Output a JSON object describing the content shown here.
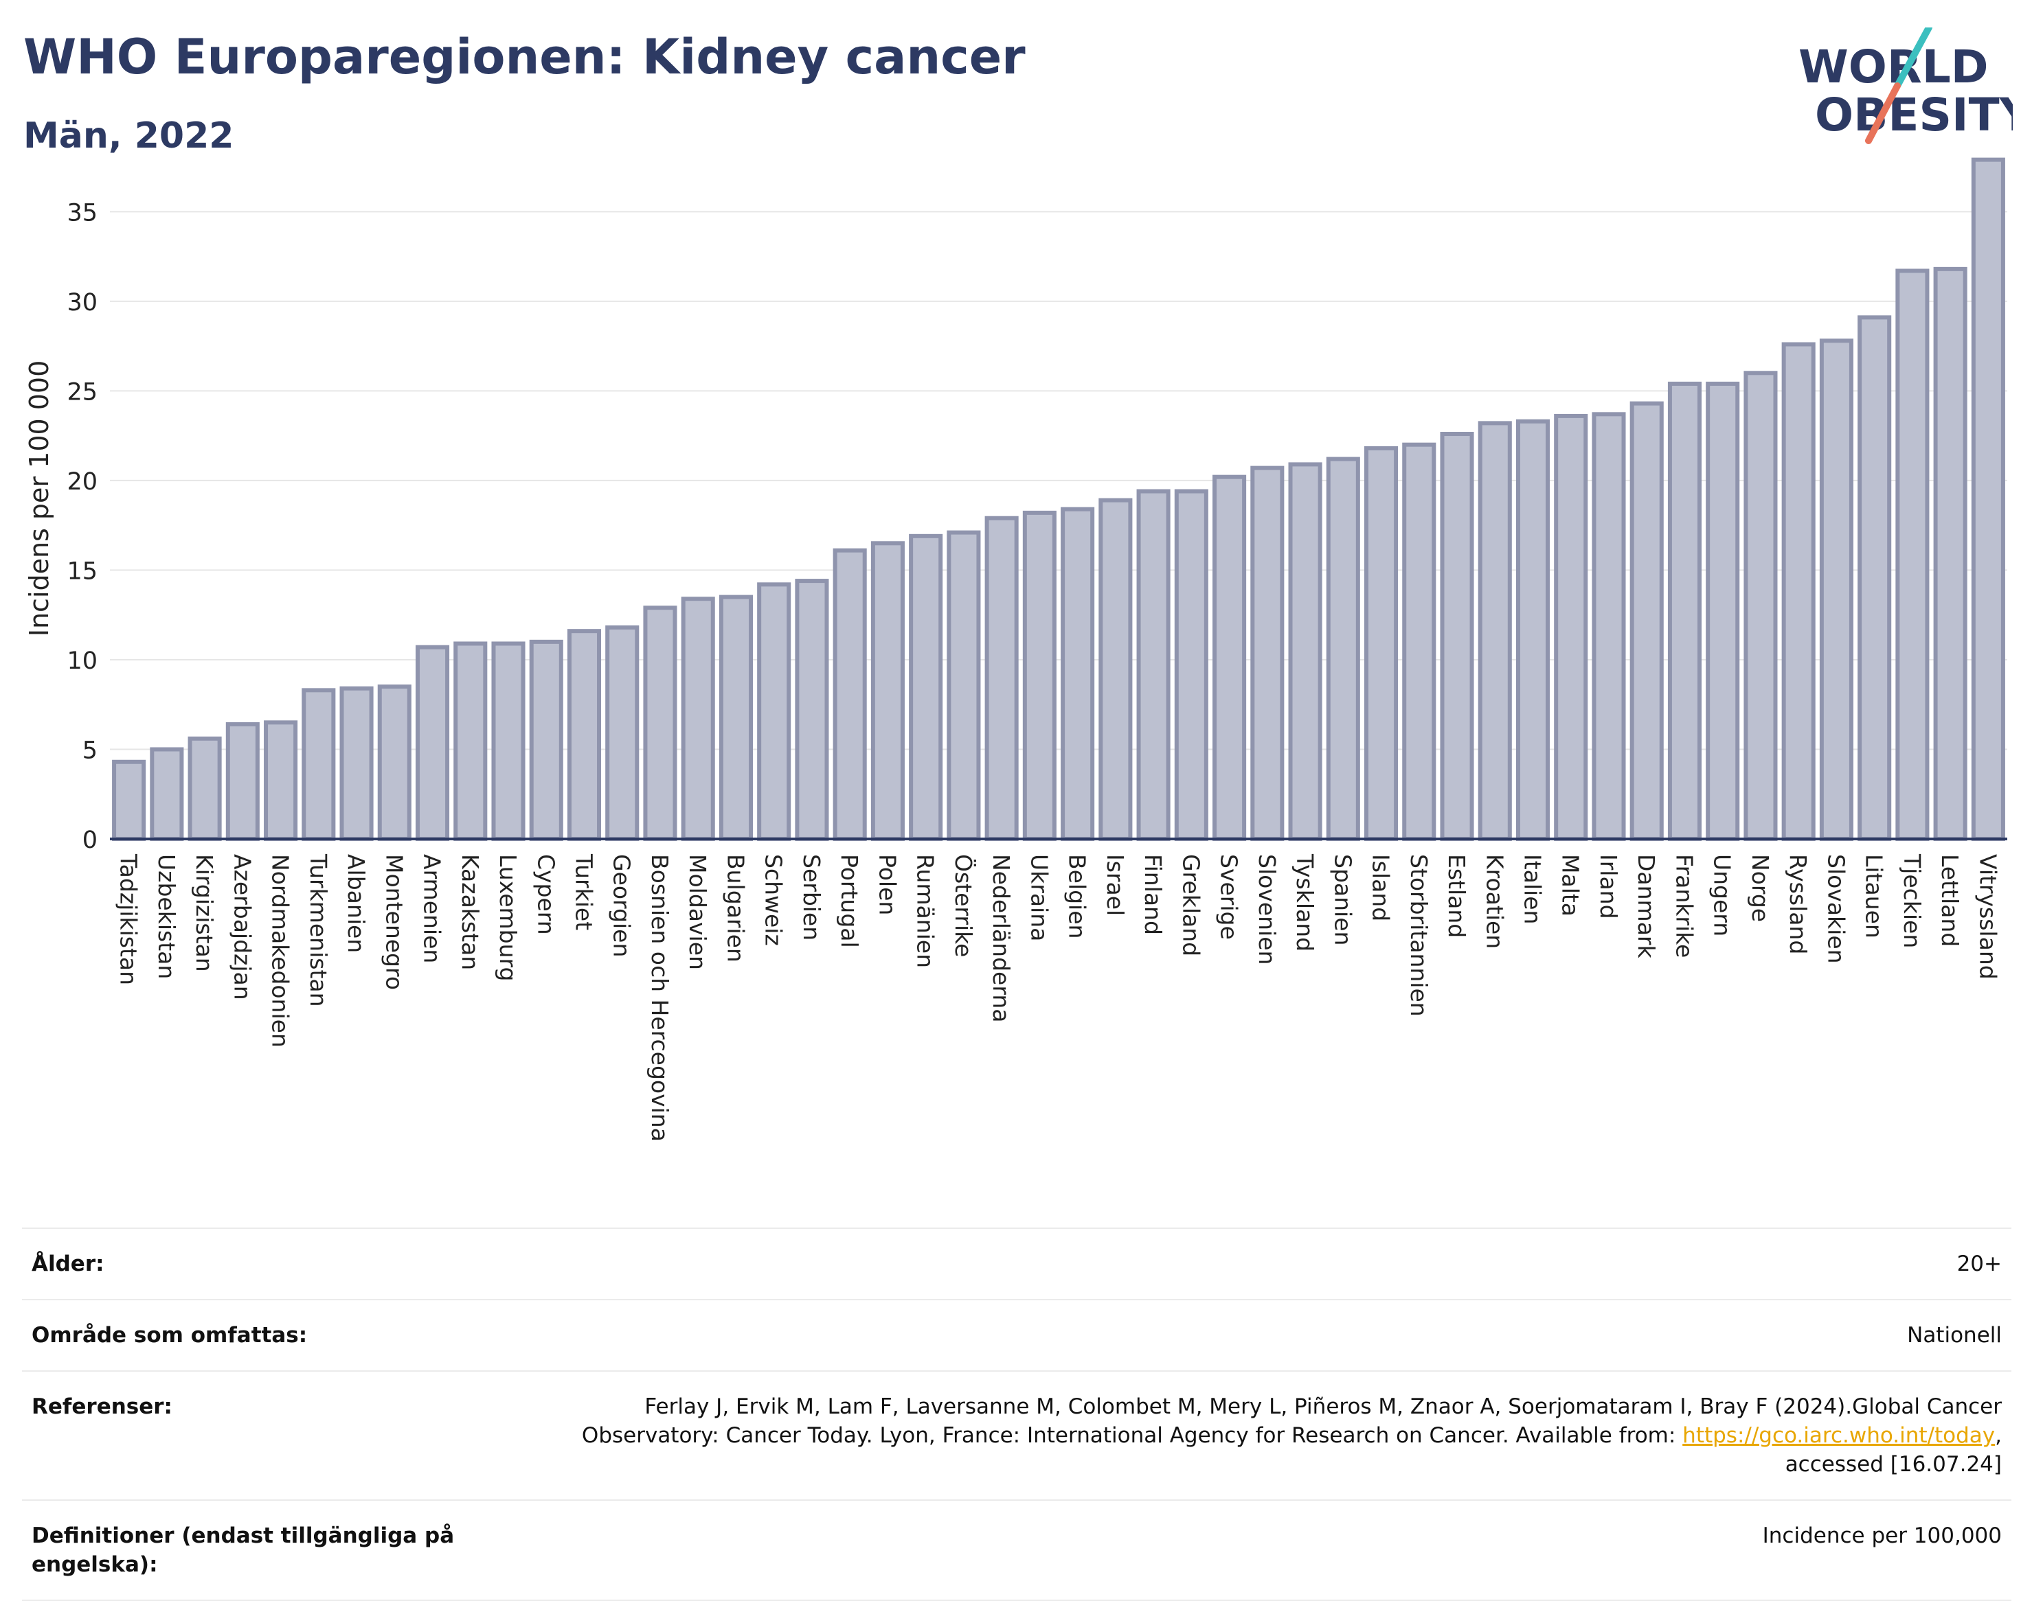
{
  "header": {
    "title": "WHO Europaregionen: Kidney cancer",
    "subtitle": "Män, 2022"
  },
  "logo": {
    "line1": "WORLD",
    "line2": "OBESITY",
    "text_color": "#2d3a63",
    "slash_color_top": "#3bbfbf",
    "slash_color_bottom": "#e8735a"
  },
  "chart_data": {
    "type": "bar",
    "ylabel": "Incidens per 100 000",
    "ylim": [
      0,
      38
    ],
    "yticks": [
      0,
      5,
      10,
      15,
      20,
      25,
      30,
      35
    ],
    "grid": true,
    "bar_fill": "#bcc0d0",
    "bar_stroke": "#8f94ad",
    "categories": [
      "Tadzjikistan",
      "Uzbekistan",
      "Kirgizistan",
      "Azerbajdzjan",
      "Nordmakedonien",
      "Turkmenistan",
      "Albanien",
      "Montenegro",
      "Armenien",
      "Kazakstan",
      "Luxemburg",
      "Cypern",
      "Turkiet",
      "Georgien",
      "Bosnien och Hercegovina",
      "Moldavien",
      "Bulgarien",
      "Schweiz",
      "Serbien",
      "Portugal",
      "Polen",
      "Rumänien",
      "Österrike",
      "Nederländerna",
      "Ukraina",
      "Belgien",
      "Israel",
      "Finland",
      "Grekland",
      "Sverige",
      "Slovenien",
      "Tyskland",
      "Spanien",
      "Island",
      "Storbritannien",
      "Estland",
      "Kroatien",
      "Italien",
      "Malta",
      "Irland",
      "Danmark",
      "Frankrike",
      "Ungern",
      "Norge",
      "Ryssland",
      "Slovakien",
      "Litauen",
      "Tjeckien",
      "Lettland",
      "Vitryssland"
    ],
    "values": [
      4.3,
      5.0,
      5.6,
      6.4,
      6.5,
      8.3,
      8.4,
      8.5,
      10.7,
      10.9,
      10.9,
      11.0,
      11.6,
      11.8,
      12.9,
      13.4,
      13.5,
      14.2,
      14.4,
      16.1,
      16.5,
      16.9,
      17.1,
      17.9,
      18.2,
      18.4,
      18.9,
      19.4,
      19.4,
      20.2,
      20.7,
      20.9,
      21.2,
      21.8,
      22.0,
      22.6,
      23.2,
      23.3,
      23.6,
      23.7,
      24.3,
      25.4,
      25.4,
      26.0,
      27.6,
      27.8,
      29.1,
      31.7,
      31.8,
      37.9
    ]
  },
  "meta": {
    "age_label": "Ålder:",
    "age_value": "20+",
    "area_label": "Område som omfattas:",
    "area_value": "Nationell",
    "ref_label": "Referenser:",
    "ref_text_1": "Ferlay J, Ervik M, Lam F, Laversanne M, Colombet M, Mery L, Piñeros M, Znaor A, Soerjomataram I, Bray F (2024).Global Cancer Observatory: Cancer Today. Lyon, France: International Agency for Research on Cancer. Available from:",
    "ref_link": "https://gco.iarc.who.int/today",
    "ref_text_2": ", accessed [16.07.24]",
    "def_label": "Definitioner (endast tillgängliga på engelska):",
    "def_value": "Incidence per 100,000"
  }
}
